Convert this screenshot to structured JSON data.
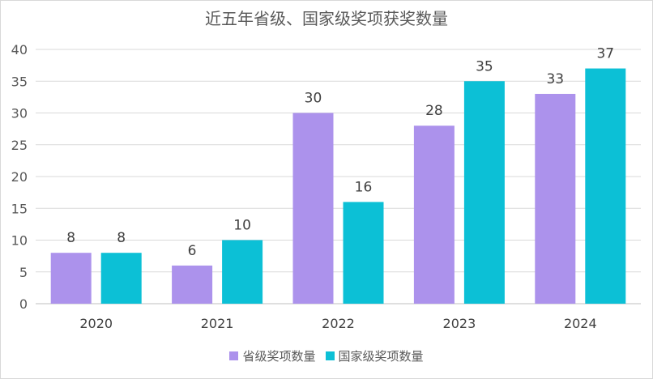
{
  "chart_data": {
    "type": "bar",
    "title": "近五年省级、国家级奖项获奖数量",
    "categories": [
      "2020",
      "2021",
      "2022",
      "2023",
      "2024"
    ],
    "series": [
      {
        "name": "省级奖项数量",
        "values": [
          8,
          6,
          30,
          28,
          33
        ],
        "color": "#ac92ec"
      },
      {
        "name": "国家级奖项数量",
        "values": [
          8,
          10,
          16,
          35,
          37
        ],
        "color": "#0cc0d6"
      }
    ],
    "ylim": [
      0,
      40
    ],
    "yticks": [
      0,
      5,
      10,
      15,
      20,
      25,
      30,
      35,
      40
    ],
    "grid": true,
    "legend_position": "bottom"
  }
}
